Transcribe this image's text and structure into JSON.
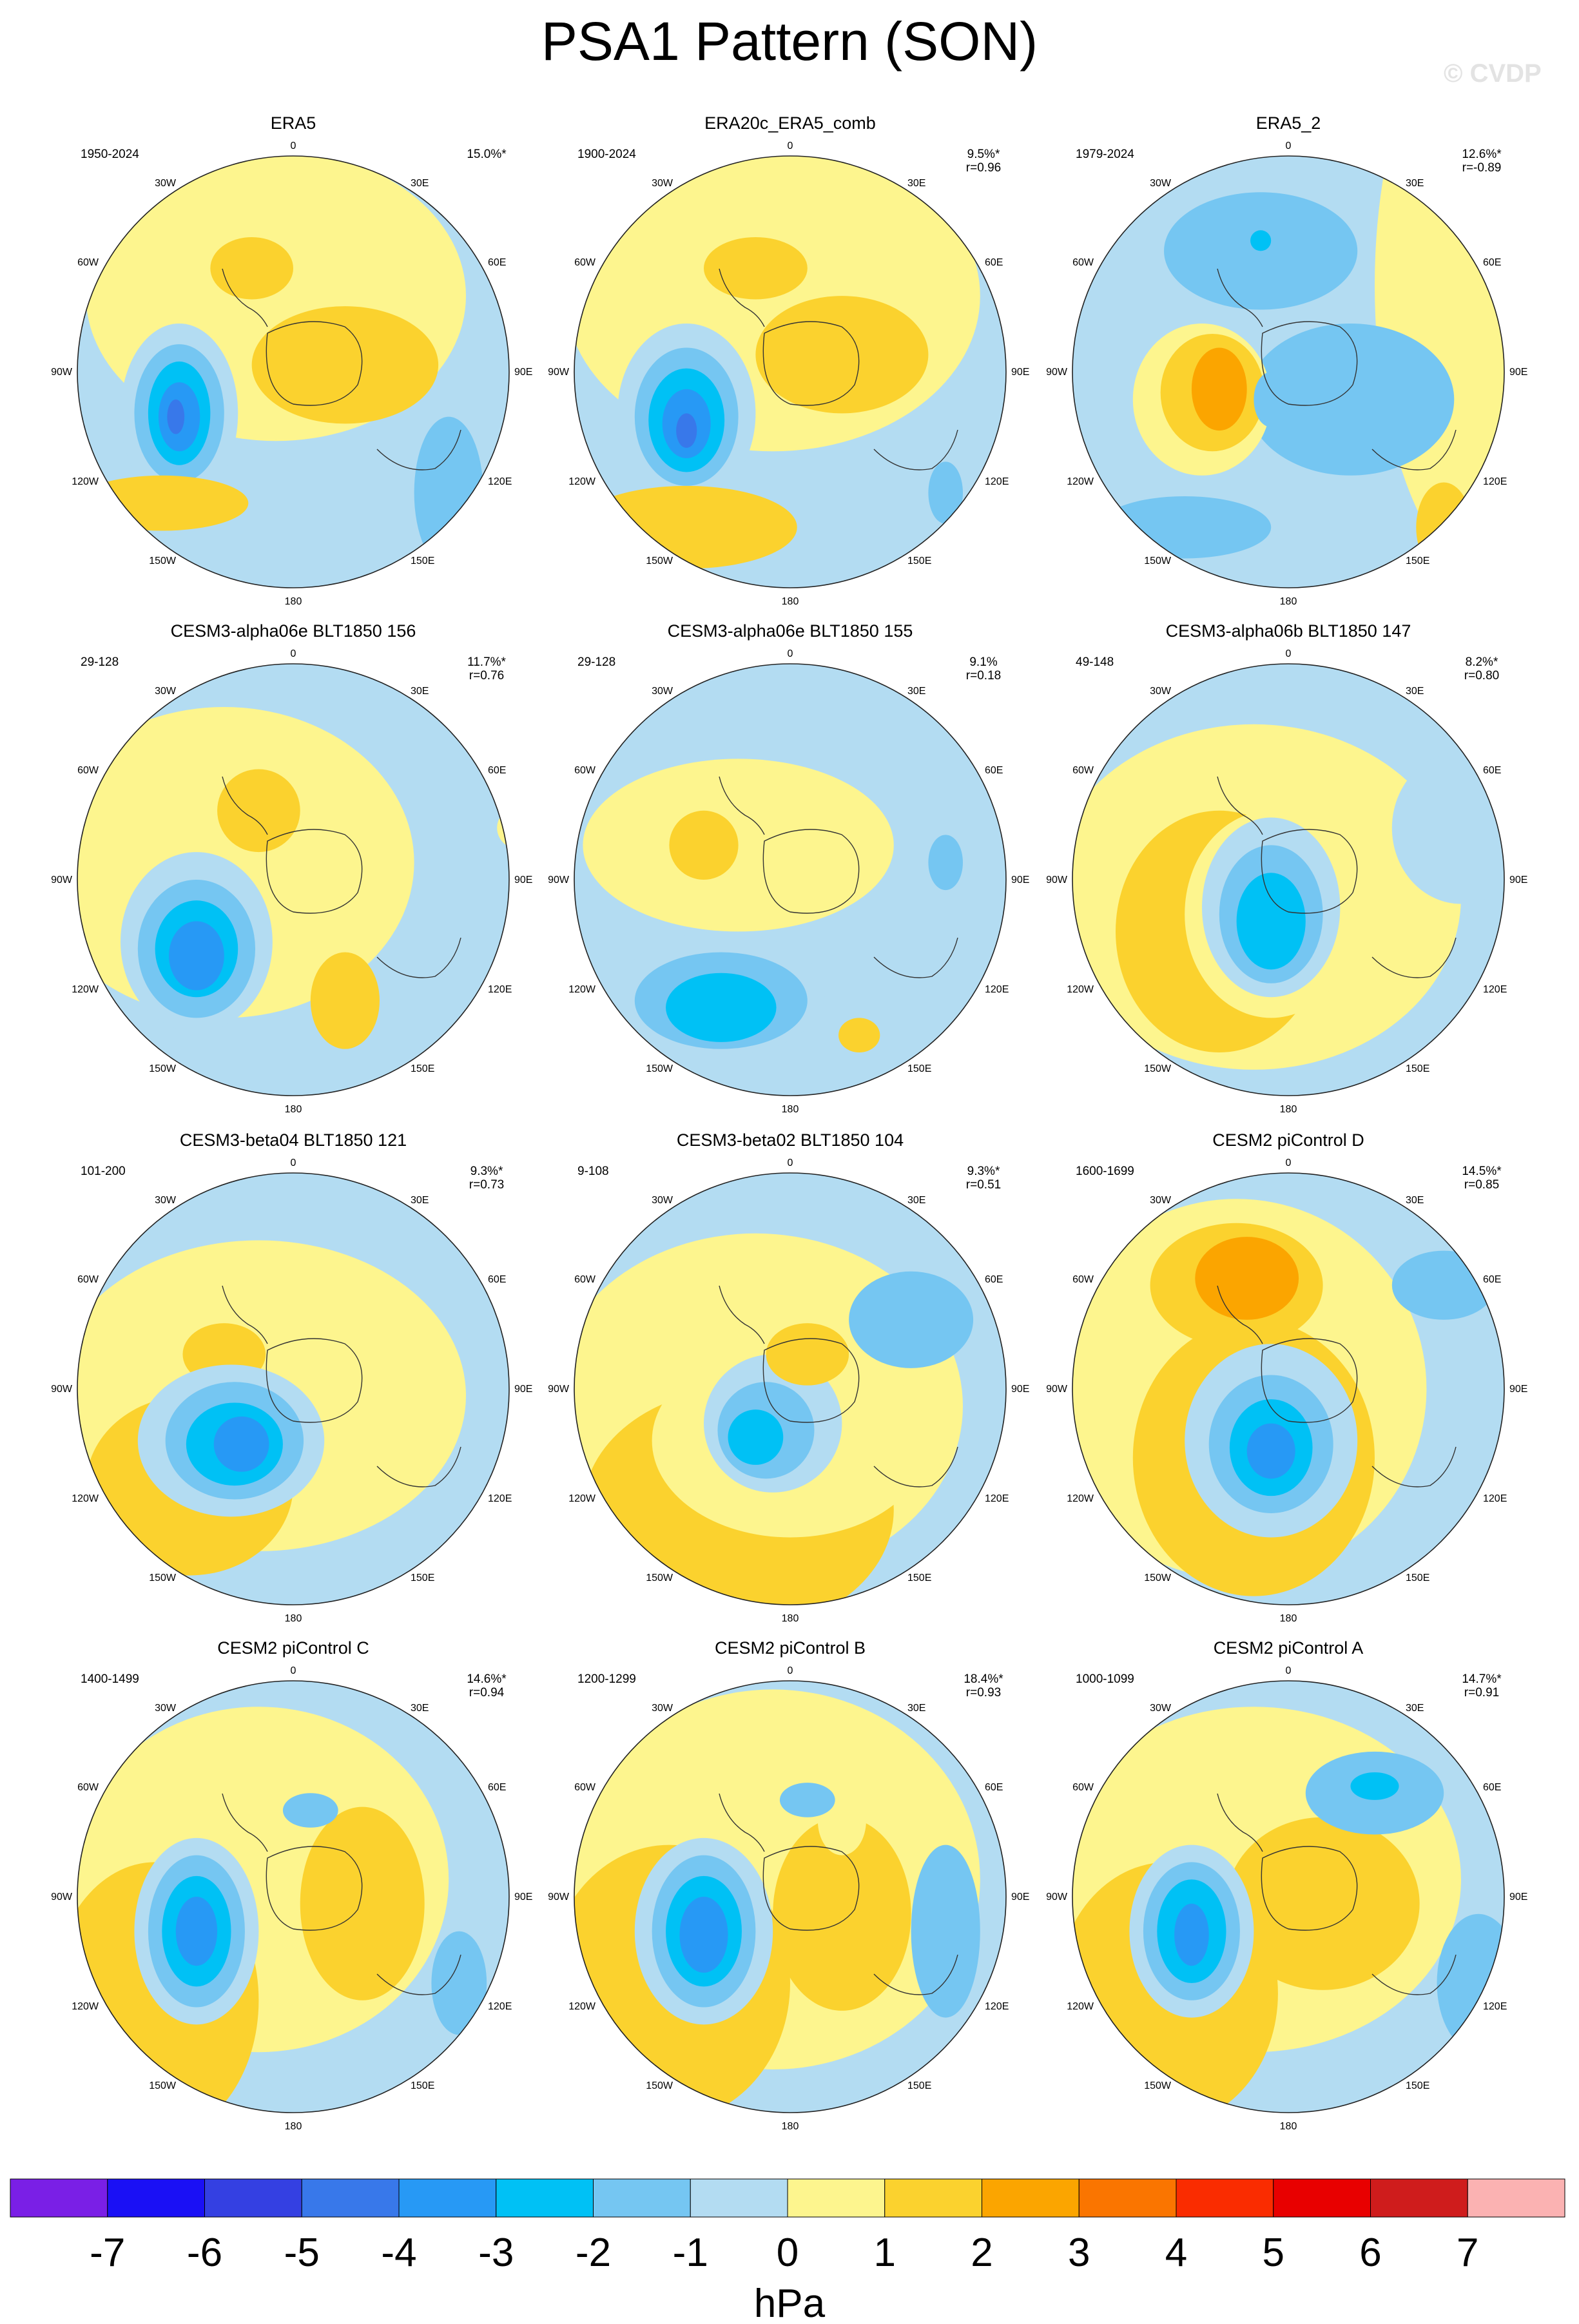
{
  "figure": {
    "title": "PSA1 Pattern (SON)",
    "watermark": "© CVDP",
    "colorbar_unit": "hPa",
    "colorbar_levels": [
      "-7",
      "-6",
      "-5",
      "-4",
      "-3",
      "-2",
      "-1",
      "0",
      "1",
      "2",
      "3",
      "4",
      "5",
      "6",
      "7"
    ],
    "colorbar_colors": [
      "#7a1fe6",
      "#1a10f5",
      "#3440e2",
      "#3878ea",
      "#2799f5",
      "#00c1f5",
      "#75c6f2",
      "#b3dcf2",
      "#fdf58e",
      "#fbd22e",
      "#fba500",
      "#fa7500",
      "#fa2c00",
      "#e80000",
      "#cf1c1c",
      "#fbb2b2"
    ],
    "longitude_labels": {
      "top": "0",
      "bottom": "180",
      "w30": "30W",
      "e30": "30E",
      "w60": "60W",
      "e60": "60E",
      "w90": "90W",
      "e90": "90E",
      "w120": "120W",
      "e120": "120E",
      "w150": "150W",
      "e150": "150E"
    }
  },
  "panels": [
    {
      "title": "ERA5",
      "period": "1950-2024",
      "pct": "15.0%*",
      "r": ""
    },
    {
      "title": "ERA20c_ERA5_comb",
      "period": "1900-2024",
      "pct": "9.5%*",
      "r": "r=0.96"
    },
    {
      "title": "ERA5_2",
      "period": "1979-2024",
      "pct": "12.6%*",
      "r": "r=-0.89"
    },
    {
      "title": "CESM3-alpha06e BLT1850 156",
      "period": "29-128",
      "pct": "11.7%*",
      "r": "r=0.76"
    },
    {
      "title": "CESM3-alpha06e BLT1850 155",
      "period": "29-128",
      "pct": "9.1%",
      "r": "r=0.18"
    },
    {
      "title": "CESM3-alpha06b BLT1850 147",
      "period": "49-148",
      "pct": "8.2%*",
      "r": "r=0.80"
    },
    {
      "title": "CESM3-beta04 BLT1850 121",
      "period": "101-200",
      "pct": "9.3%*",
      "r": "r=0.73"
    },
    {
      "title": "CESM3-beta02 BLT1850 104",
      "period": "9-108",
      "pct": "9.3%*",
      "r": "r=0.51"
    },
    {
      "title": "CESM2 piControl D",
      "period": "1600-1699",
      "pct": "14.5%*",
      "r": "r=0.85"
    },
    {
      "title": "CESM2 piControl C",
      "period": "1400-1499",
      "pct": "14.6%*",
      "r": "r=0.94"
    },
    {
      "title": "CESM2 piControl B",
      "period": "1200-1299",
      "pct": "18.4%*",
      "r": "r=0.93"
    },
    {
      "title": "CESM2 piControl A",
      "period": "1000-1099",
      "pct": "14.7%*",
      "r": "r=0.91"
    }
  ]
}
